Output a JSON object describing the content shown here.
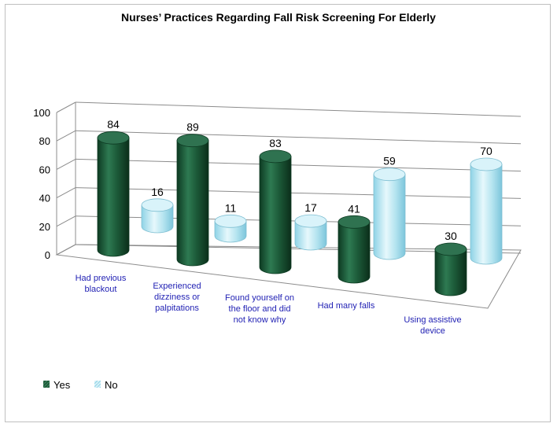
{
  "chart_data": {
    "type": "bar",
    "title": "Nurses’ Practices Regarding Fall Risk Screening For Elderly",
    "categories": [
      [
        "Had previous",
        "blackout"
      ],
      [
        "Experienced",
        "dizziness or",
        "palpitations"
      ],
      [
        "Found yourself on",
        "the floor and did",
        "not know why"
      ],
      [
        "Had many falls"
      ],
      [
        "Using assistive",
        "device"
      ]
    ],
    "series": [
      {
        "name": "Yes",
        "values": [
          84,
          89,
          83,
          41,
          30
        ],
        "color": "#1f5a3a"
      },
      {
        "name": "No",
        "values": [
          16,
          11,
          17,
          59,
          70
        ],
        "color": "#b7e6f2"
      }
    ],
    "ylim": [
      0,
      100
    ],
    "yticks": [
      0,
      20,
      40,
      60,
      80,
      100
    ],
    "grid": true,
    "legend": "bottom-left",
    "style": "3d-cylinder"
  }
}
